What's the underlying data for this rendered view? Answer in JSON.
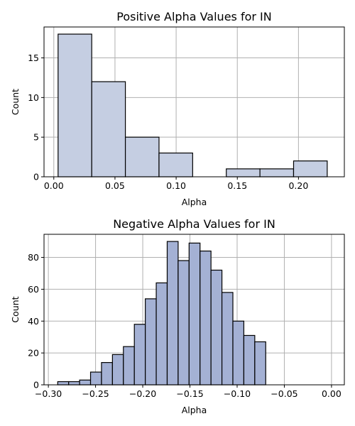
{
  "chart_data": [
    {
      "type": "bar",
      "title": "Positive Alpha Values for IN",
      "xlabel": "Alpha",
      "ylabel": "Count",
      "bar_color": "#c5cee2",
      "xlim": [
        -0.008,
        0.2375
      ],
      "ylim": [
        0,
        18.9
      ],
      "xticks": [
        0.0,
        0.05,
        0.1,
        0.15,
        0.2
      ],
      "xtick_labels": [
        "0.00",
        "0.05",
        "0.10",
        "0.15",
        "0.20"
      ],
      "yticks": [
        0,
        5,
        10,
        15
      ],
      "ytick_labels": [
        "0",
        "5",
        "10",
        "15"
      ],
      "grid": true,
      "bins": [
        {
          "x0": 0.0035,
          "x1": 0.031,
          "count": 18
        },
        {
          "x0": 0.031,
          "x1": 0.0585,
          "count": 12
        },
        {
          "x0": 0.0585,
          "x1": 0.086,
          "count": 5
        },
        {
          "x0": 0.086,
          "x1": 0.1135,
          "count": 3
        },
        {
          "x0": 0.1135,
          "x1": 0.141,
          "count": 0
        },
        {
          "x0": 0.141,
          "x1": 0.1685,
          "count": 1
        },
        {
          "x0": 0.1685,
          "x1": 0.196,
          "count": 1
        },
        {
          "x0": 0.196,
          "x1": 0.2235,
          "count": 2
        }
      ]
    },
    {
      "type": "bar",
      "title": "Negative Alpha Values for IN",
      "xlabel": "Alpha",
      "ylabel": "Count",
      "bar_color": "#a4b1d4",
      "xlim": [
        -0.3046,
        0.0136
      ],
      "ylim": [
        0,
        94.5
      ],
      "xticks": [
        -0.3,
        -0.25,
        -0.2,
        -0.15,
        -0.1,
        -0.05,
        0.0
      ],
      "xtick_labels": [
        "−0.30",
        "−0.25",
        "−0.20",
        "−0.15",
        "−0.10",
        "−0.05",
        "0.00"
      ],
      "yticks": [
        0,
        20,
        40,
        60,
        80
      ],
      "ytick_labels": [
        "0",
        "20",
        "40",
        "60",
        "80"
      ],
      "grid": true,
      "bins": [
        {
          "x0": -0.2901,
          "x1": -0.2785,
          "count": 2
        },
        {
          "x0": -0.2785,
          "x1": -0.2669,
          "count": 2
        },
        {
          "x0": -0.2669,
          "x1": -0.2553,
          "count": 3
        },
        {
          "x0": -0.2553,
          "x1": -0.2437,
          "count": 8
        },
        {
          "x0": -0.2437,
          "x1": -0.2321,
          "count": 14
        },
        {
          "x0": -0.2321,
          "x1": -0.2205,
          "count": 19
        },
        {
          "x0": -0.2205,
          "x1": -0.2089,
          "count": 24
        },
        {
          "x0": -0.2089,
          "x1": -0.1973,
          "count": 38
        },
        {
          "x0": -0.1973,
          "x1": -0.1857,
          "count": 54
        },
        {
          "x0": -0.1857,
          "x1": -0.1741,
          "count": 64
        },
        {
          "x0": -0.1741,
          "x1": -0.1625,
          "count": 90
        },
        {
          "x0": -0.1625,
          "x1": -0.1509,
          "count": 78
        },
        {
          "x0": -0.1509,
          "x1": -0.1393,
          "count": 89
        },
        {
          "x0": -0.1393,
          "x1": -0.1277,
          "count": 84
        },
        {
          "x0": -0.1277,
          "x1": -0.1161,
          "count": 72
        },
        {
          "x0": -0.1161,
          "x1": -0.1045,
          "count": 58
        },
        {
          "x0": -0.1045,
          "x1": -0.0929,
          "count": 40
        },
        {
          "x0": -0.0929,
          "x1": -0.0813,
          "count": 31
        },
        {
          "x0": -0.0813,
          "x1": -0.0697,
          "count": 27
        }
      ]
    }
  ]
}
